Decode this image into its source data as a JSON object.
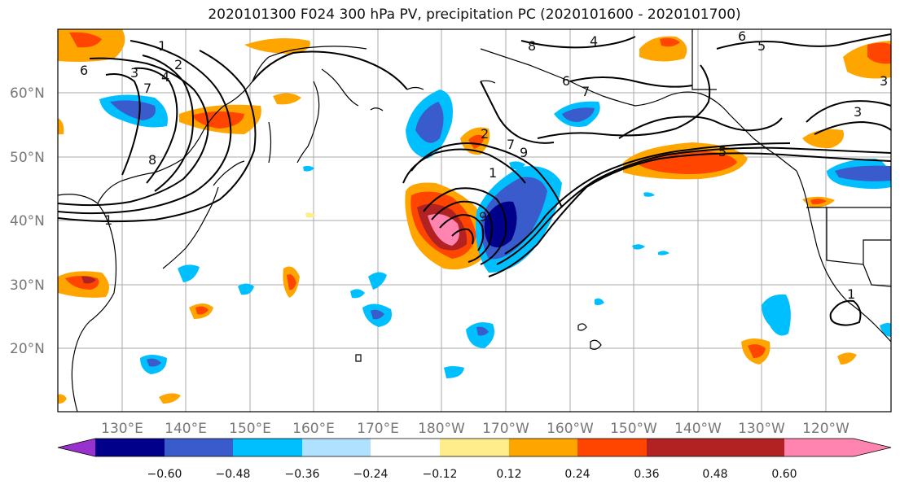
{
  "title": "2020101300 F024 300 hPa PV, precipitation PC (2020101600 - 2020101700)",
  "lat_labels": [
    "60°N",
    "50°N",
    "40°N",
    "30°N",
    "20°N"
  ],
  "lon_labels": [
    "130°E",
    "140°E",
    "150°E",
    "160°E",
    "170°E",
    "180°W",
    "170°W",
    "160°W",
    "150°W",
    "140°W",
    "130°W",
    "120°W"
  ],
  "colorbar": {
    "colors": [
      "#9932CC",
      "#00008B",
      "#3A5BCC",
      "#00BFFF",
      "#B0E2FF",
      "#FFFFFF",
      "#FFEC8B",
      "#FFA500",
      "#FF4500",
      "#B22222",
      "#FF85B0"
    ],
    "ticks": [
      "−0.60",
      "−0.48",
      "−0.36",
      "−0.24",
      "−0.12",
      "0.12",
      "0.24",
      "0.36",
      "0.48",
      "0.60"
    ]
  },
  "contour_labels": [
    "1",
    "2",
    "3",
    "4",
    "5",
    "6",
    "7",
    "8",
    "9"
  ]
}
